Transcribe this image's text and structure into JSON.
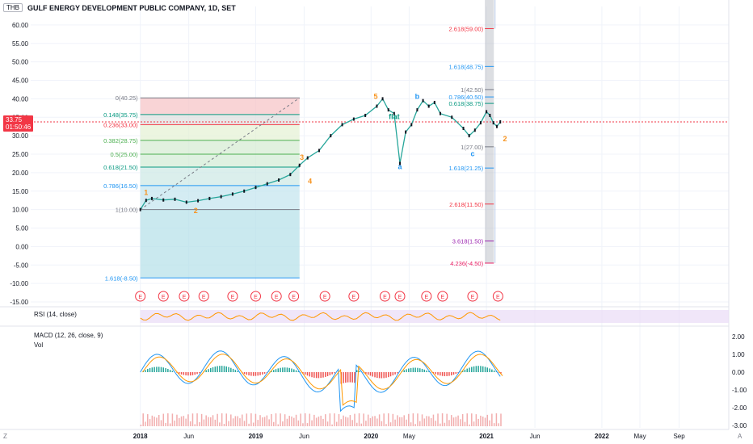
{
  "header": {
    "currency": "THB",
    "title": "GULF ENERGY DEVELOPMENT PUBLIC COMPANY, 1D, SET"
  },
  "price_badge": {
    "value": "33.75",
    "timer": "01:50:46",
    "color": "#f23645"
  },
  "rsi": {
    "label": "RSI (14, close)",
    "color": "#ff9800",
    "band_color": "#e9dcf7"
  },
  "macd": {
    "label": "MACD (12, 26, close, 9)",
    "vol_label": "Vol",
    "y_ticks": [
      "2.00",
      "1.00",
      "0.00",
      "-1.00",
      "-2.00",
      "-3.00"
    ]
  },
  "corner_left": "Z",
  "corner_right": "A",
  "chart_data": {
    "type": "line",
    "ylim": [
      -15,
      65
    ],
    "y_ticks": [
      "60.00",
      "55.00",
      "50.00",
      "45.00",
      "40.00",
      "35.00",
      "30.00",
      "25.00",
      "20.00",
      "15.00",
      "10.00",
      "5.00",
      "0.00",
      "-5.00",
      "-10.00",
      "-15.00"
    ],
    "x_ticks": [
      {
        "label": "2018",
        "t": 2018.0
      },
      {
        "label": "Jun",
        "t": 2018.42
      },
      {
        "label": "2019",
        "t": 2019.0
      },
      {
        "label": "Jun",
        "t": 2019.42
      },
      {
        "label": "2020",
        "t": 2020.0
      },
      {
        "label": "May",
        "t": 2020.33
      },
      {
        "label": "2021",
        "t": 2021.0
      },
      {
        "label": "Jun",
        "t": 2021.42
      },
      {
        "label": "2022",
        "t": 2022.0
      },
      {
        "label": "May",
        "t": 2022.33
      },
      {
        "label": "Sep",
        "t": 2022.67
      }
    ],
    "series": [
      {
        "values": [
          [
            2018.0,
            10.0
          ],
          [
            2018.05,
            12.5
          ],
          [
            2018.1,
            13.0
          ],
          [
            2018.2,
            12.6
          ],
          [
            2018.3,
            12.8
          ],
          [
            2018.4,
            12.0
          ],
          [
            2018.5,
            12.4
          ],
          [
            2018.6,
            13.0
          ],
          [
            2018.7,
            13.5
          ],
          [
            2018.8,
            14.2
          ],
          [
            2018.9,
            15.0
          ],
          [
            2019.0,
            16.0
          ],
          [
            2019.1,
            17.0
          ],
          [
            2019.2,
            18.0
          ],
          [
            2019.3,
            19.5
          ],
          [
            2019.38,
            22.0
          ],
          [
            2019.45,
            24.0
          ],
          [
            2019.55,
            26.0
          ],
          [
            2019.65,
            30.0
          ],
          [
            2019.75,
            33.0
          ],
          [
            2019.85,
            34.5
          ],
          [
            2019.95,
            35.5
          ],
          [
            2020.05,
            38.0
          ],
          [
            2020.1,
            40.0
          ],
          [
            2020.15,
            37.0
          ],
          [
            2020.2,
            36.0
          ],
          [
            2020.25,
            22.5
          ],
          [
            2020.3,
            31.0
          ],
          [
            2020.35,
            33.0
          ],
          [
            2020.4,
            37.0
          ],
          [
            2020.45,
            39.5
          ],
          [
            2020.5,
            38.0
          ],
          [
            2020.55,
            39.0
          ],
          [
            2020.6,
            36.0
          ],
          [
            2020.7,
            35.0
          ],
          [
            2020.8,
            32.0
          ],
          [
            2020.85,
            30.0
          ],
          [
            2020.9,
            31.5
          ],
          [
            2020.95,
            33.5
          ],
          [
            2021.0,
            36.5
          ],
          [
            2021.03,
            35.5
          ],
          [
            2021.06,
            33.5
          ],
          [
            2021.09,
            32.5
          ],
          [
            2021.12,
            33.75
          ]
        ]
      }
    ],
    "fib_left": {
      "levels": [
        {
          "label": "0(40.25)",
          "v": 40.25,
          "color": "#787b86"
        },
        {
          "label": "0.148(35.75)",
          "v": 35.75,
          "color": "#089981"
        },
        {
          "label": "0.236(33.00)",
          "v": 33.0,
          "color": "#f23645"
        },
        {
          "label": "0.382(28.75)",
          "v": 28.75,
          "color": "#4caf50"
        },
        {
          "label": "0.5(25.00)",
          "v": 25.0,
          "color": "#4caf50"
        },
        {
          "label": "0.618(21.50)",
          "v": 21.5,
          "color": "#089981"
        },
        {
          "label": "0.786(16.50)",
          "v": 16.5,
          "color": "#2196f3"
        },
        {
          "label": "1(10.00)",
          "v": 10.0,
          "color": "#787b86"
        },
        {
          "label": "1.618(-8.50)",
          "v": -8.5,
          "color": "#2196f3"
        }
      ]
    },
    "fib_right": {
      "levels": [
        {
          "label": "2.618(59.00)",
          "v": 59.0,
          "color": "#f23645"
        },
        {
          "label": "1.618(48.75)",
          "v": 48.75,
          "color": "#2196f3"
        },
        {
          "label": "1(42.50)",
          "v": 42.5,
          "color": "#787b86"
        },
        {
          "label": "0.786(40.50)",
          "v": 40.5,
          "color": "#2196f3"
        },
        {
          "label": "0.618(38.75)",
          "v": 38.75,
          "color": "#089981"
        },
        {
          "label": "1(27.00)",
          "v": 27.0,
          "color": "#787b86"
        },
        {
          "label": "1.618(21.25)",
          "v": 21.25,
          "color": "#2196f3"
        },
        {
          "label": "2.618(11.50)",
          "v": 11.5,
          "color": "#f23645"
        },
        {
          "label": "3.618(1.50)",
          "v": 1.5,
          "color": "#9c27b0"
        },
        {
          "label": "4.236(-4.50)",
          "v": -4.5,
          "color": "#e91e63"
        }
      ]
    },
    "wave_labels": [
      {
        "text": "1",
        "t": 2018.05,
        "v": 14.0,
        "color": "#f7931e"
      },
      {
        "text": "2",
        "t": 2018.48,
        "v": 9.0,
        "color": "#f7931e"
      },
      {
        "text": "3",
        "t": 2019.4,
        "v": 23.5,
        "color": "#f7931e"
      },
      {
        "text": "4",
        "t": 2019.47,
        "v": 17.0,
        "color": "#f7931e"
      },
      {
        "text": "5",
        "t": 2020.04,
        "v": 40.0,
        "color": "#f7931e"
      },
      {
        "text": "a",
        "t": 2020.25,
        "v": 21.0,
        "color": "#2196f3"
      },
      {
        "text": "b",
        "t": 2020.4,
        "v": 40.0,
        "color": "#2196f3"
      },
      {
        "text": "flat",
        "t": 2020.2,
        "v": 34.5,
        "color": "#089981"
      },
      {
        "text": "c",
        "t": 2020.88,
        "v": 24.5,
        "color": "#2196f3"
      },
      {
        "text": "2",
        "t": 2021.16,
        "v": 28.5,
        "color": "#f7931e"
      }
    ],
    "earnings_markers": [
      "E",
      "E",
      "E",
      "E",
      "E",
      "E",
      "E",
      "E",
      "E",
      "E",
      "E",
      "E",
      "E",
      "E",
      "E",
      "E"
    ],
    "earnings_t": [
      2018.0,
      2018.2,
      2018.38,
      2018.55,
      2018.8,
      2019.0,
      2019.18,
      2019.33,
      2019.6,
      2019.85,
      2020.12,
      2020.25,
      2020.48,
      2020.62,
      2020.88,
      2021.1
    ]
  }
}
